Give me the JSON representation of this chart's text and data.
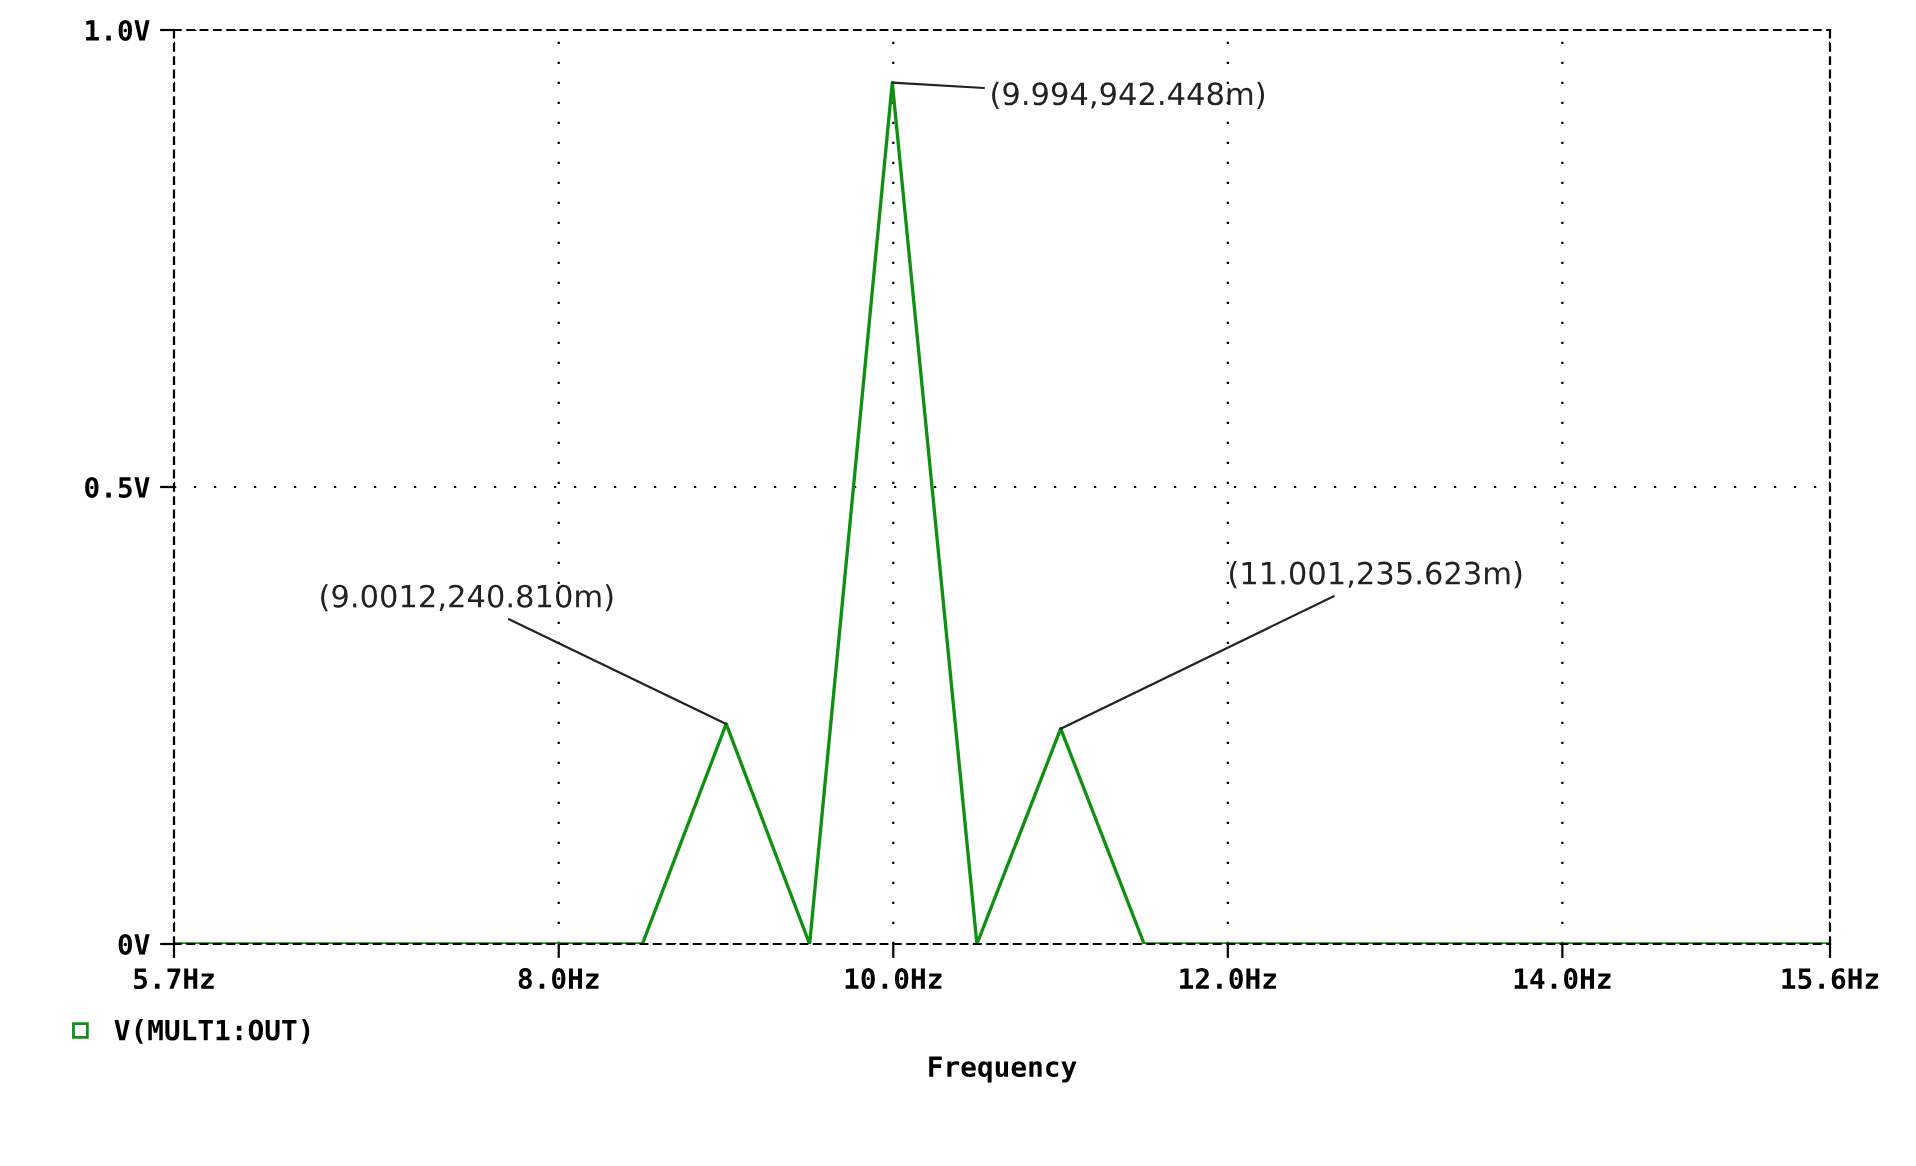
{
  "chart_data": {
    "type": "line",
    "xlabel": "Frequency",
    "x": [
      5.7,
      8.5,
      9.0012,
      9.5,
      9.994,
      10.5,
      11.001,
      11.5,
      15.6
    ],
    "series": [
      {
        "name": "V(MULT1:OUT)",
        "color": "#109010",
        "values": [
          0,
          0,
          0.24081,
          0,
          0.942448,
          0,
          0.235623,
          0,
          0
        ]
      }
    ],
    "xlim": [
      5.7,
      15.6
    ],
    "xticks": [
      {
        "value": 5.7,
        "label": "5.7Hz"
      },
      {
        "value": 8.0,
        "label": "8.0Hz"
      },
      {
        "value": 10.0,
        "label": "10.0Hz"
      },
      {
        "value": 12.0,
        "label": "12.0Hz"
      },
      {
        "value": 14.0,
        "label": "14.0Hz"
      },
      {
        "value": 15.6,
        "label": "15.6Hz"
      }
    ],
    "ylim": [
      0,
      1.0
    ],
    "yticks": [
      {
        "value": 0,
        "label": "0V"
      },
      {
        "value": 0.5,
        "label": "0.5V"
      },
      {
        "value": 1.0,
        "label": "1.0V"
      }
    ],
    "annotations": [
      {
        "text": "(9.0012,240.810m)",
        "x": 9.0012,
        "y": 0.24081
      },
      {
        "text": "(9.994,942.448m)",
        "x": 9.994,
        "y": 0.942448
      },
      {
        "text": "(11.001,235.623m)",
        "x": 11.001,
        "y": 0.235623
      }
    ],
    "grid": true,
    "legend": "bottom left",
    "marker": "none",
    "line_style": "solid"
  }
}
